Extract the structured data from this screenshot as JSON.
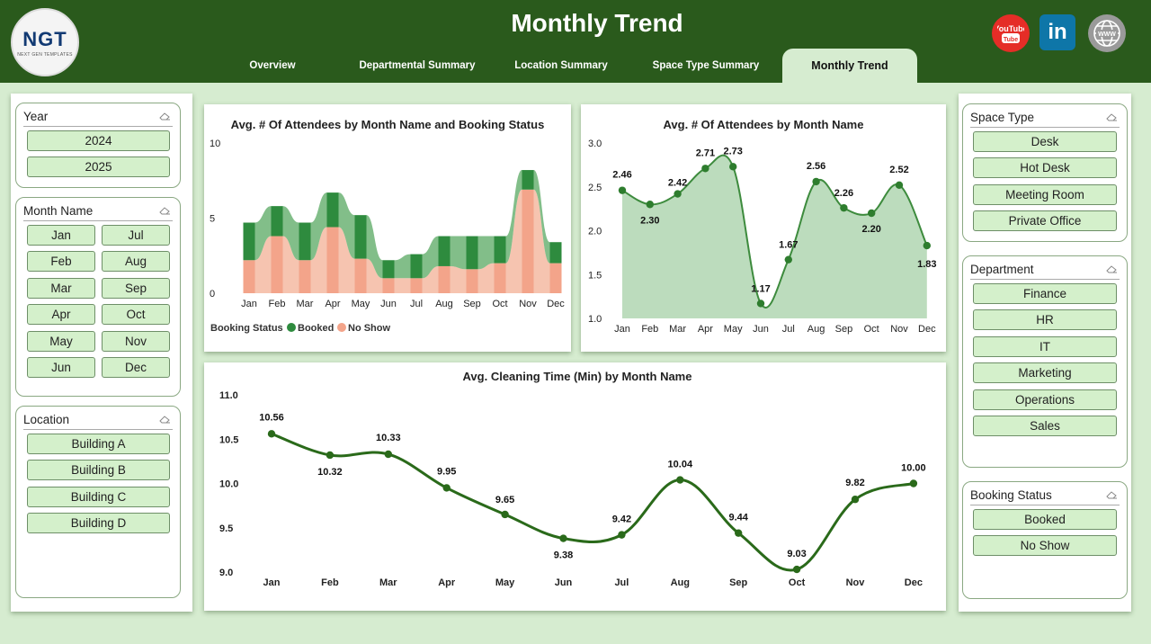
{
  "header": {
    "title": "Monthly Trend",
    "logo_text": "NGT",
    "logo_subtext": "NEXT GEN TEMPLATES",
    "tabs": [
      {
        "label": "Overview"
      },
      {
        "label": "Departmental Summary"
      },
      {
        "label": "Location Summary"
      },
      {
        "label": "Space Type Summary"
      },
      {
        "label": "Monthly Trend"
      }
    ],
    "social": {
      "youtube": "YouTube",
      "linkedin": "in",
      "web": "WWW"
    }
  },
  "slicers": {
    "year": {
      "title": "Year",
      "items": [
        "2024",
        "2025"
      ]
    },
    "month": {
      "title": "Month Name",
      "items": [
        "Jan",
        "Jul",
        "Feb",
        "Aug",
        "Mar",
        "Sep",
        "Apr",
        "Oct",
        "May",
        "Nov",
        "Jun",
        "Dec"
      ]
    },
    "location": {
      "title": "Location",
      "items": [
        "Building A",
        "Building B",
        "Building C",
        "Building D"
      ]
    },
    "space_type": {
      "title": "Space Type",
      "items": [
        "Desk",
        "Hot Desk",
        "Meeting Room",
        "Private Office"
      ]
    },
    "department": {
      "title": "Department",
      "items": [
        "Finance",
        "HR",
        "IT",
        "Marketing",
        "Operations",
        "Sales"
      ]
    },
    "booking_status": {
      "title": "Booking Status",
      "items": [
        "Booked",
        "No Show"
      ]
    }
  },
  "colors": {
    "header_bg": "#2a5a1c",
    "booked": "#2e8b3e",
    "booked_ribbon": "#6cb374",
    "no_show": "#f3a48a",
    "no_show_ribbon": "#f6c4b0",
    "line": "#3d8b3d",
    "area": "#bcdcbd",
    "cleaning_line": "#2a6a1a"
  },
  "chart_data": [
    {
      "type": "area",
      "title": "Avg. # Of Attendees by Month Name and Booking Status",
      "categories": [
        "Jan",
        "Feb",
        "Mar",
        "Apr",
        "May",
        "Jun",
        "Jul",
        "Aug",
        "Sep",
        "Oct",
        "Nov",
        "Dec"
      ],
      "stacked": true,
      "ylim": [
        0,
        10
      ],
      "yticks": [
        "10",
        "5",
        "0"
      ],
      "legend": {
        "title": "Booking Status",
        "position": "bottom-left"
      },
      "series": [
        {
          "name": "Booked",
          "values": [
            2.5,
            2.0,
            2.5,
            2.3,
            2.9,
            1.2,
            1.6,
            2.0,
            2.2,
            1.8,
            1.3,
            1.4
          ]
        },
        {
          "name": "No Show",
          "values": [
            2.2,
            3.8,
            2.2,
            4.4,
            2.3,
            1.0,
            1.0,
            1.8,
            1.6,
            2.0,
            6.9,
            2.0
          ]
        }
      ]
    },
    {
      "type": "area",
      "title": "Avg. # Of Attendees by Month Name",
      "categories": [
        "Jan",
        "Feb",
        "Mar",
        "Apr",
        "May",
        "Jun",
        "Jul",
        "Aug",
        "Sep",
        "Oct",
        "Nov",
        "Dec"
      ],
      "values": [
        2.46,
        2.3,
        2.42,
        2.71,
        2.73,
        1.17,
        1.67,
        2.56,
        2.26,
        2.2,
        2.52,
        1.83
      ],
      "labels": [
        "2.46",
        "2.30",
        "2.42",
        "2.71",
        "2.73",
        "1.17",
        "1.67",
        "2.56",
        "2.26",
        "2.20",
        "2.52",
        "1.83"
      ],
      "ylim": [
        1.0,
        3.0
      ],
      "yticks": [
        "3.0",
        "2.5",
        "2.0",
        "1.5",
        "1.0"
      ]
    },
    {
      "type": "line",
      "title": "Avg. Cleaning Time (Min) by Month Name",
      "categories": [
        "Jan",
        "Feb",
        "Mar",
        "Apr",
        "May",
        "Jun",
        "Jul",
        "Aug",
        "Sep",
        "Oct",
        "Nov",
        "Dec"
      ],
      "values": [
        10.56,
        10.32,
        10.33,
        9.95,
        9.65,
        9.38,
        9.42,
        10.04,
        9.44,
        9.03,
        9.82,
        10.0
      ],
      "labels": [
        "10.56",
        "10.32",
        "10.33",
        "9.95",
        "9.65",
        "9.38",
        "9.42",
        "10.04",
        "9.44",
        "9.03",
        "9.82",
        "10.00"
      ],
      "ylim": [
        9.0,
        11.0
      ],
      "yticks": [
        "11.0",
        "10.5",
        "10.0",
        "9.5",
        "9.0"
      ]
    }
  ]
}
